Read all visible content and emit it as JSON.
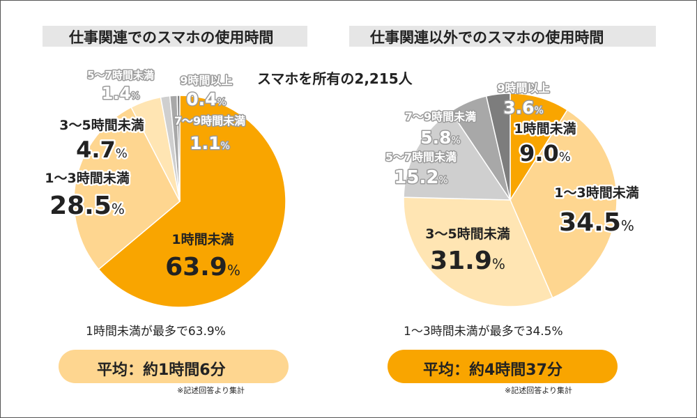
{
  "left": {
    "title": "仕事関連でのスマホの使用時間",
    "summary": "1時間未満が最多で63.9%",
    "average_label": "平均：約1時間6分",
    "footnote": "※記述回答より集計"
  },
  "right": {
    "title": "仕事関連以外でのスマホの使用時間",
    "summary": "1～3時間未満が最多で34.5%",
    "average_label": "平均：約4時間37分",
    "footnote": "※記述回答より集計"
  },
  "subtitle": "スマホを所有の2,215人",
  "percent_sign": "%",
  "colors": {
    "dark_orange": "#f9a500",
    "light_orange": "#fed690",
    "pale_orange": "#ffe5b3",
    "light_gray": "#cfcfcf",
    "mid_gray": "#a8a8a8",
    "dark_gray": "#7d7d7d",
    "pill_left": "#fed690",
    "pill_right": "#f9a500",
    "title_bar": "#e6e6e6"
  },
  "chart_data": [
    {
      "type": "pie",
      "title": "仕事関連でのスマホの使用時間",
      "categories": [
        "1時間未満",
        "1～3時間未満",
        "3～5時間未満",
        "5～7時間未満",
        "7～9時間未満",
        "9時間以上"
      ],
      "values": [
        63.9,
        28.5,
        4.7,
        1.4,
        1.1,
        0.4
      ],
      "value_labels": [
        "63.9",
        "28.5",
        "4.7",
        "1.4",
        "1.1",
        "0.4"
      ]
    },
    {
      "type": "pie",
      "title": "仕事関連以外でのスマホの使用時間",
      "categories": [
        "1時間未満",
        "1～3時間未満",
        "3～5時間未満",
        "5～7時間未満",
        "7～9時間未満",
        "9時間以上"
      ],
      "values": [
        9.0,
        34.5,
        31.9,
        15.2,
        5.8,
        3.6
      ],
      "value_labels": [
        "9.0",
        "34.5",
        "31.9",
        "15.2",
        "5.8",
        "3.6"
      ]
    }
  ]
}
